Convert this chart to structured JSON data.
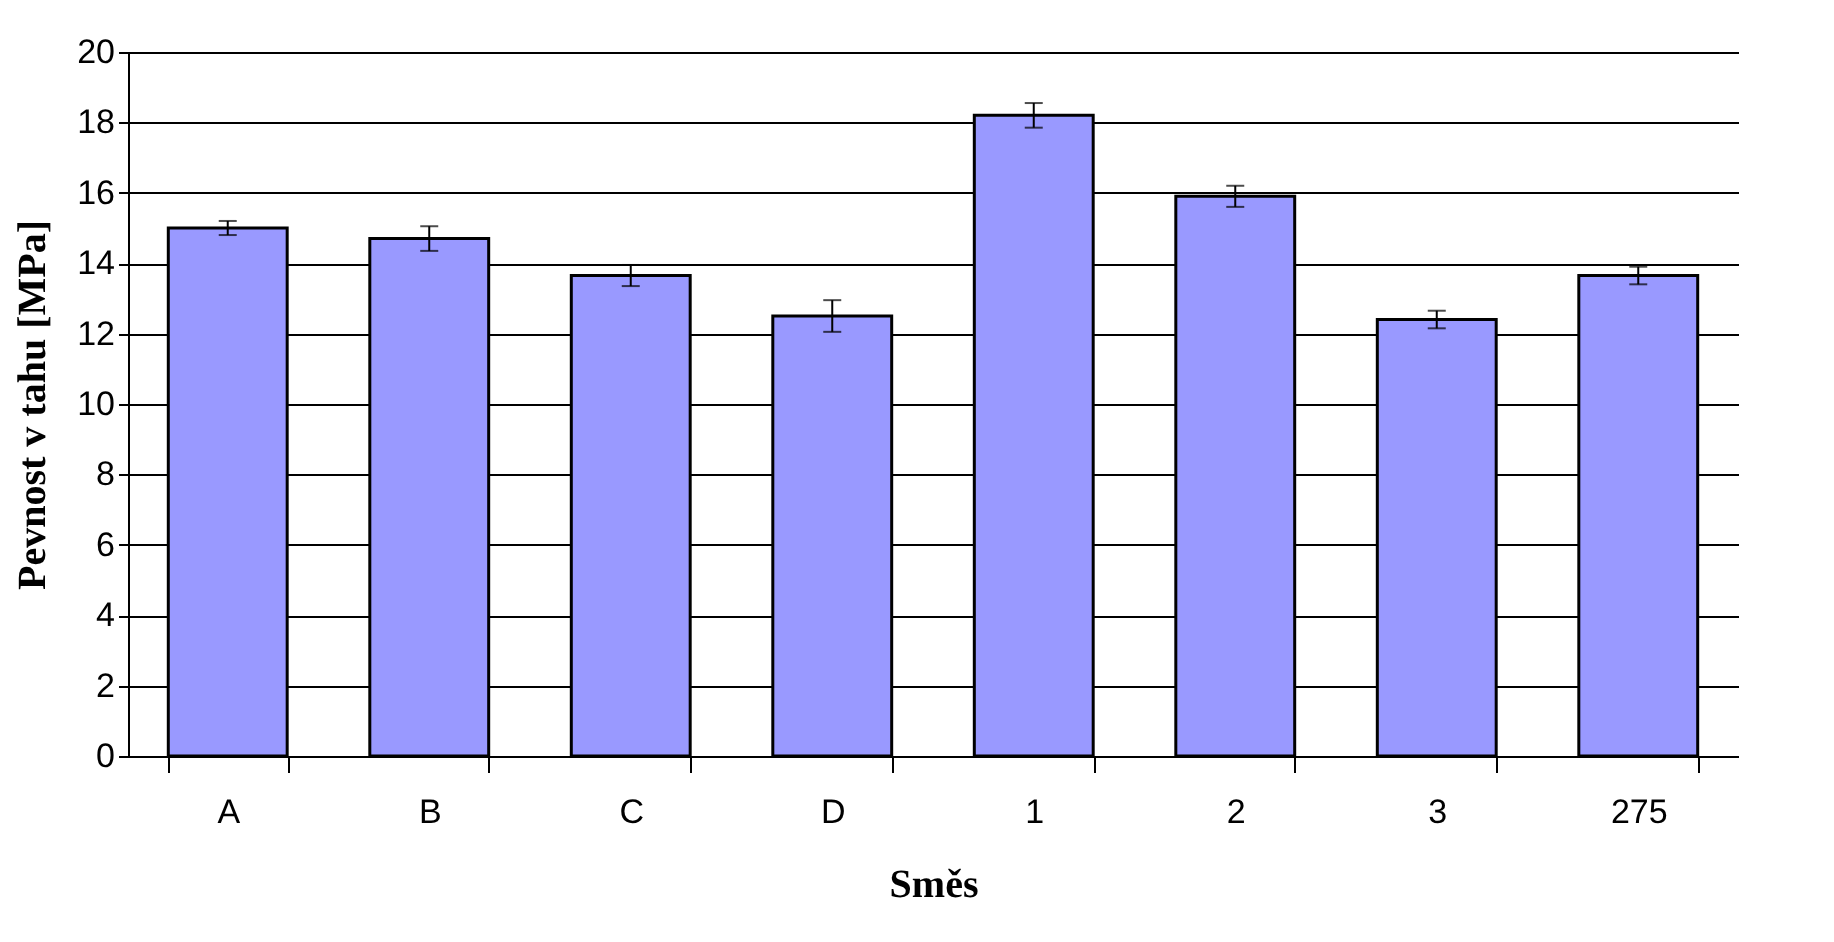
{
  "chart_data": {
    "type": "bar",
    "xlabel": "Směs",
    "ylabel": "Pevnost v tahu [MPa]",
    "categories": [
      "A",
      "B",
      "C",
      "D",
      "1",
      "2",
      "3",
      "275"
    ],
    "values": [
      15.0,
      14.7,
      13.65,
      12.5,
      18.2,
      15.9,
      12.4,
      13.65
    ],
    "errors": [
      0.2,
      0.35,
      0.3,
      0.45,
      0.35,
      0.3,
      0.25,
      0.25
    ],
    "color": "#9999ff",
    "ylim": [
      0,
      20
    ],
    "yticks": [
      0,
      2,
      4,
      6,
      8,
      10,
      12,
      14,
      16,
      18,
      20
    ],
    "grid": "y"
  }
}
